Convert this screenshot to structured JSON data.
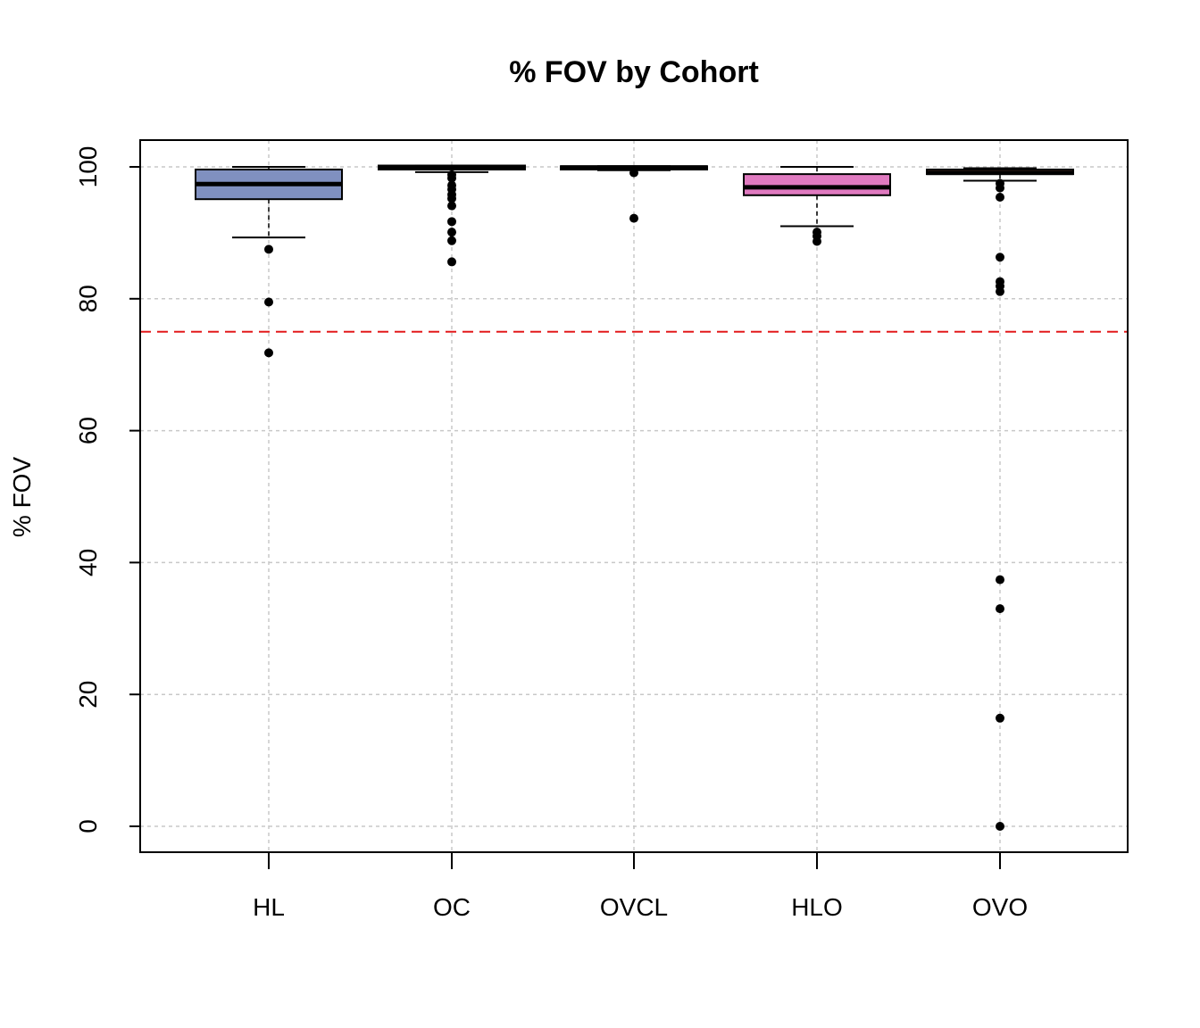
{
  "chart_data": {
    "type": "box",
    "title": "% FOV by Cohort",
    "xlabel": "",
    "ylabel": "% FOV",
    "ylim": [
      -4,
      104
    ],
    "yticks": [
      0,
      20,
      40,
      60,
      80,
      100
    ],
    "ytick_labels": [
      "0",
      "20",
      "40",
      "60",
      "80",
      "100"
    ],
    "grid": true,
    "reference_line": {
      "y": 75,
      "color": "#e31a1c",
      "style": "dashed"
    },
    "categories": [
      "HL",
      "OC",
      "OVCL",
      "HLO",
      "OVO"
    ],
    "series": [
      {
        "category": "HL",
        "color": "#8090c0",
        "whisker_low": 89.3,
        "q1": 95.1,
        "median": 97.4,
        "q3": 99.6,
        "whisker_high": 100,
        "outliers": [
          87.5,
          79.5,
          71.8
        ]
      },
      {
        "category": "OC",
        "color": "#6aa67a",
        "whisker_low": 99.2,
        "q1": 99.6,
        "median": 99.9,
        "q3": 100.2,
        "whisker_high": 100.2,
        "outliers": [
          98.8,
          98.3,
          97.2,
          96.6,
          95.8,
          95.2,
          94.1,
          91.7,
          90.1,
          88.8,
          85.6
        ]
      },
      {
        "category": "OVCL",
        "color": "#d9b35c",
        "whisker_low": 99.5,
        "q1": 99.6,
        "median": 99.9,
        "q3": 100.1,
        "whisker_high": 100.1,
        "outliers": [
          99.1,
          92.2
        ]
      },
      {
        "category": "HLO",
        "color": "#e07ac0",
        "whisker_low": 91.0,
        "q1": 95.7,
        "median": 96.9,
        "q3": 98.9,
        "whisker_high": 100,
        "outliers": [
          90.1,
          89.5,
          88.7
        ]
      },
      {
        "category": "OVO",
        "color": "#f29070",
        "whisker_low": 97.9,
        "q1": 98.9,
        "median": 99.1,
        "q3": 99.6,
        "whisker_high": 99.8,
        "outliers": [
          97.5,
          96.8,
          95.4,
          86.3,
          82.6,
          81.9,
          81.1,
          37.4,
          33.0,
          16.4,
          0.0
        ]
      }
    ]
  }
}
